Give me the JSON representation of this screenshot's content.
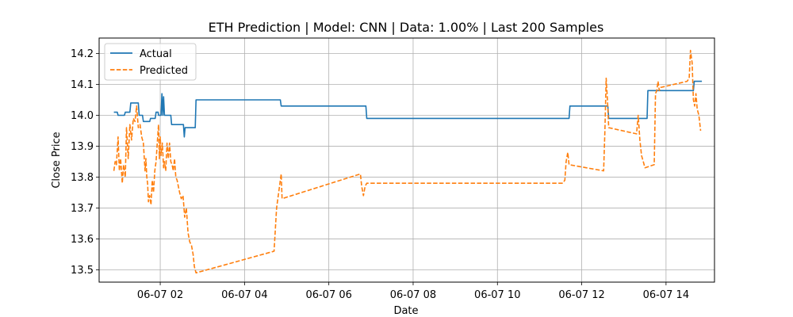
{
  "chart_data": {
    "type": "line",
    "title": "ETH Prediction | Model: CNN | Data: 1.00% | Last 200 Samples",
    "xlabel": "Date",
    "ylabel": "Close Price",
    "xlim": [
      0.55,
      15.15
    ],
    "ylim": [
      13.46,
      14.25
    ],
    "x_ticks": [
      {
        "value": 2,
        "label": "06-07 02"
      },
      {
        "value": 4,
        "label": "06-07 04"
      },
      {
        "value": 6,
        "label": "06-07 06"
      },
      {
        "value": 8,
        "label": "06-07 08"
      },
      {
        "value": 10,
        "label": "06-07 10"
      },
      {
        "value": 12,
        "label": "06-07 12"
      },
      {
        "value": 14,
        "label": "06-07 14"
      }
    ],
    "y_ticks": [
      {
        "value": 13.5,
        "label": "13.5"
      },
      {
        "value": 13.6,
        "label": "13.6"
      },
      {
        "value": 13.7,
        "label": "13.7"
      },
      {
        "value": 13.8,
        "label": "13.8"
      },
      {
        "value": 13.9,
        "label": "13.9"
      },
      {
        "value": 14.0,
        "label": "14.0"
      },
      {
        "value": 14.1,
        "label": "14.1"
      },
      {
        "value": 14.2,
        "label": "14.2"
      }
    ],
    "grid": true,
    "legend_position": "top-left",
    "series": [
      {
        "name": "Actual",
        "color": "#1f77b4",
        "style": "solid",
        "points": [
          [
            0.9,
            14.01
          ],
          [
            0.98,
            14.01
          ],
          [
            1.0,
            14.0
          ],
          [
            1.15,
            14.0
          ],
          [
            1.17,
            14.01
          ],
          [
            1.28,
            14.01
          ],
          [
            1.3,
            14.04
          ],
          [
            1.48,
            14.04
          ],
          [
            1.5,
            14.0
          ],
          [
            1.58,
            14.0
          ],
          [
            1.6,
            13.98
          ],
          [
            1.75,
            13.98
          ],
          [
            1.77,
            13.99
          ],
          [
            1.88,
            13.99
          ],
          [
            1.9,
            14.01
          ],
          [
            1.95,
            14.01
          ],
          [
            1.96,
            14.0
          ],
          [
            2.02,
            14.0
          ],
          [
            2.04,
            14.07
          ],
          [
            2.06,
            14.0
          ],
          [
            2.08,
            14.06
          ],
          [
            2.1,
            14.0
          ],
          [
            2.25,
            14.0
          ],
          [
            2.27,
            13.97
          ],
          [
            2.55,
            13.97
          ],
          [
            2.57,
            13.93
          ],
          [
            2.59,
            13.96
          ],
          [
            2.83,
            13.96
          ],
          [
            2.85,
            14.05
          ],
          [
            4.85,
            14.05
          ],
          [
            4.87,
            14.03
          ],
          [
            6.88,
            14.03
          ],
          [
            6.9,
            13.99
          ],
          [
            11.7,
            13.99
          ],
          [
            11.72,
            14.03
          ],
          [
            12.62,
            14.03
          ],
          [
            12.64,
            13.99
          ],
          [
            13.55,
            13.99
          ],
          [
            13.57,
            14.08
          ],
          [
            14.65,
            14.08
          ],
          [
            14.67,
            14.11
          ],
          [
            14.85,
            14.11
          ]
        ]
      },
      {
        "name": "Predicted",
        "color": "#ff7f0e",
        "style": "dashed",
        "points": [
          [
            0.9,
            13.82
          ],
          [
            0.93,
            13.85
          ],
          [
            0.96,
            13.84
          ],
          [
            1.0,
            13.93
          ],
          [
            1.03,
            13.82
          ],
          [
            1.06,
            13.86
          ],
          [
            1.1,
            13.78
          ],
          [
            1.13,
            13.84
          ],
          [
            1.17,
            13.8
          ],
          [
            1.2,
            13.96
          ],
          [
            1.24,
            13.86
          ],
          [
            1.28,
            13.97
          ],
          [
            1.32,
            13.92
          ],
          [
            1.36,
            13.99
          ],
          [
            1.4,
            13.98
          ],
          [
            1.44,
            14.03
          ],
          [
            1.48,
            13.96
          ],
          [
            1.52,
            13.97
          ],
          [
            1.56,
            13.93
          ],
          [
            1.6,
            13.91
          ],
          [
            1.64,
            13.82
          ],
          [
            1.66,
            13.86
          ],
          [
            1.68,
            13.8
          ],
          [
            1.7,
            13.78
          ],
          [
            1.72,
            13.72
          ],
          [
            1.75,
            13.74
          ],
          [
            1.78,
            13.71
          ],
          [
            1.81,
            13.79
          ],
          [
            1.84,
            13.75
          ],
          [
            1.87,
            13.82
          ],
          [
            1.9,
            13.85
          ],
          [
            1.93,
            13.91
          ],
          [
            1.96,
            13.97
          ],
          [
            1.98,
            13.86
          ],
          [
            2.0,
            13.93
          ],
          [
            2.02,
            13.87
          ],
          [
            2.05,
            13.91
          ],
          [
            2.08,
            13.83
          ],
          [
            2.1,
            13.85
          ],
          [
            2.13,
            13.82
          ],
          [
            2.16,
            13.91
          ],
          [
            2.19,
            13.86
          ],
          [
            2.22,
            13.91
          ],
          [
            2.25,
            13.85
          ],
          [
            2.28,
            13.84
          ],
          [
            2.31,
            13.82
          ],
          [
            2.34,
            13.86
          ],
          [
            2.37,
            13.8
          ],
          [
            2.4,
            13.79
          ],
          [
            2.43,
            13.77
          ],
          [
            2.46,
            13.75
          ],
          [
            2.5,
            13.73
          ],
          [
            2.54,
            13.74
          ],
          [
            2.58,
            13.67
          ],
          [
            2.62,
            13.7
          ],
          [
            2.66,
            13.62
          ],
          [
            2.7,
            13.59
          ],
          [
            2.74,
            13.58
          ],
          [
            2.78,
            13.55
          ],
          [
            2.81,
            13.51
          ],
          [
            2.85,
            13.49
          ],
          [
            4.7,
            13.56
          ],
          [
            4.76,
            13.7
          ],
          [
            4.8,
            13.74
          ],
          [
            4.84,
            13.78
          ],
          [
            4.87,
            13.81
          ],
          [
            4.89,
            13.73
          ],
          [
            6.75,
            13.81
          ],
          [
            6.78,
            13.77
          ],
          [
            6.82,
            13.74
          ],
          [
            6.86,
            13.77
          ],
          [
            6.9,
            13.78
          ],
          [
            11.55,
            13.78
          ],
          [
            11.6,
            13.79
          ],
          [
            11.63,
            13.85
          ],
          [
            11.67,
            13.88
          ],
          [
            11.7,
            13.84
          ],
          [
            12.52,
            13.82
          ],
          [
            12.55,
            13.95
          ],
          [
            12.58,
            14.12
          ],
          [
            12.61,
            14.05
          ],
          [
            12.64,
            13.96
          ],
          [
            13.3,
            13.94
          ],
          [
            13.34,
            14.0
          ],
          [
            13.38,
            13.92
          ],
          [
            13.42,
            13.87
          ],
          [
            13.46,
            13.85
          ],
          [
            13.5,
            13.83
          ],
          [
            13.72,
            13.84
          ],
          [
            13.75,
            14.07
          ],
          [
            13.78,
            14.08
          ],
          [
            13.81,
            14.11
          ],
          [
            13.84,
            14.08
          ],
          [
            13.87,
            14.09
          ],
          [
            14.5,
            14.11
          ],
          [
            14.55,
            14.12
          ],
          [
            14.58,
            14.21
          ],
          [
            14.62,
            14.17
          ],
          [
            14.65,
            14.05
          ],
          [
            14.68,
            14.03
          ],
          [
            14.71,
            14.07
          ],
          [
            14.74,
            14.02
          ],
          [
            14.78,
            14.0
          ],
          [
            14.82,
            13.95
          ]
        ]
      }
    ]
  }
}
